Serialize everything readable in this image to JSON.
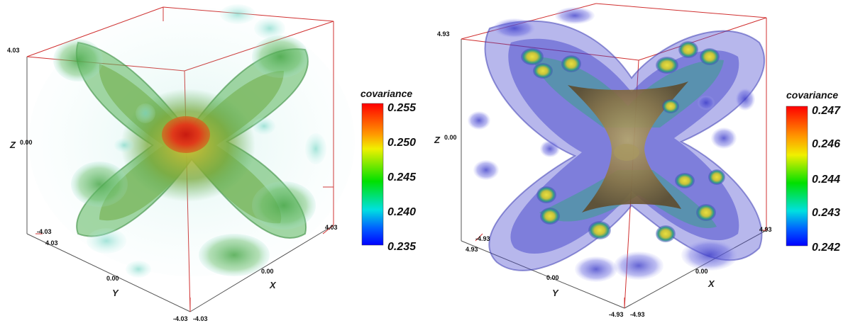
{
  "panels": [
    {
      "axes": {
        "z_label": "Z",
        "y_label": "Y",
        "x_label": "X",
        "z_ticks": [
          "4.03",
          "0.00",
          "-4.03"
        ],
        "y_ticks": [
          "4.03",
          "0.00",
          "-4.03"
        ],
        "x_ticks": [
          "4.03",
          "0.00",
          "-4.03"
        ]
      },
      "colorbar": {
        "title": "covariance",
        "ticks": [
          "0.255",
          "0.250",
          "0.245",
          "0.240",
          "0.235"
        ]
      }
    },
    {
      "axes": {
        "z_label": "Z",
        "y_label": "Y",
        "x_label": "X",
        "z_ticks": [
          "4.93",
          "0.00",
          "-4.93"
        ],
        "y_ticks": [
          "4.93",
          "0.00",
          "-4.93"
        ],
        "x_ticks": [
          "4.93",
          "0.00",
          "-4.93"
        ]
      },
      "colorbar": {
        "title": "covariance",
        "ticks": [
          "0.247",
          "0.246",
          "0.244",
          "0.243",
          "0.242"
        ]
      }
    }
  ]
}
